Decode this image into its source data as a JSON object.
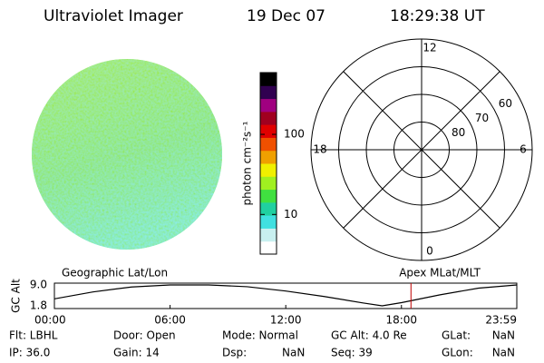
{
  "header": {
    "title": "Ultraviolet Imager",
    "date": "19 Dec 07",
    "time": "18:29:38 UT"
  },
  "chart_data": [
    {
      "type": "colorbar",
      "label": "photon cm⁻²s⁻¹",
      "log_scale": true,
      "ylim": [
        3.2,
        590
      ],
      "yticks": [
        10,
        100
      ],
      "colors": [
        "#ffffff",
        "#c8f0f0",
        "#40e0e0",
        "#20d0a0",
        "#40e040",
        "#a0f020",
        "#f0f000",
        "#f0a000",
        "#f05000",
        "#e00000",
        "#a00020",
        "#a00080",
        "#300050",
        "#000000"
      ]
    },
    {
      "type": "polar",
      "rlim": [
        90,
        50
      ],
      "rticks": [
        80,
        70,
        60
      ],
      "mlt_ticks": [
        12,
        18,
        6,
        0
      ]
    },
    {
      "type": "line",
      "title_left": "Geographic Lat/Lon",
      "title_right": "Apex MLat/MLT",
      "ylabel": "GC Alt",
      "color": "#000000",
      "marker_color": "#c00000",
      "ylim": [
        1.8,
        9.0
      ],
      "yticks": [
        {
          "value": 9.0,
          "label": "9.0"
        },
        {
          "value": 1.8,
          "label": "1.8"
        }
      ],
      "xlim": [
        0,
        23.983
      ],
      "xticks": [
        {
          "value": 0,
          "label": "00:00"
        },
        {
          "value": 6,
          "label": "06:00"
        },
        {
          "value": 12,
          "label": "12:00"
        },
        {
          "value": 18,
          "label": "18:00"
        },
        {
          "value": 23.983,
          "label": "23:59"
        }
      ],
      "x": [
        0,
        2,
        4,
        6,
        8,
        10,
        12,
        14,
        16,
        17,
        18,
        20,
        22,
        23.983
      ],
      "values": [
        4.2,
        6.6,
        8.3,
        9.0,
        9.0,
        8.4,
        6.9,
        5.0,
        2.8,
        1.8,
        2.9,
        5.6,
        7.9,
        9.0
      ],
      "marker_x": 18.494
    }
  ],
  "info": [
    [
      {
        "label": "Flt: LBHL"
      },
      {
        "label": "Door: Open"
      },
      {
        "label": "Mode: Normal"
      },
      {
        "label": "GC Alt: 4.0 Re"
      },
      {
        "label": "GLat:",
        "value": "NaN"
      }
    ],
    [
      {
        "label": "IP: 36.0"
      },
      {
        "label": "Gain: 14"
      },
      {
        "label": "Dsp:",
        "value": "NaN"
      },
      {
        "label": "Seq: 39"
      },
      {
        "label": "GLon:",
        "value": "NaN"
      }
    ]
  ]
}
